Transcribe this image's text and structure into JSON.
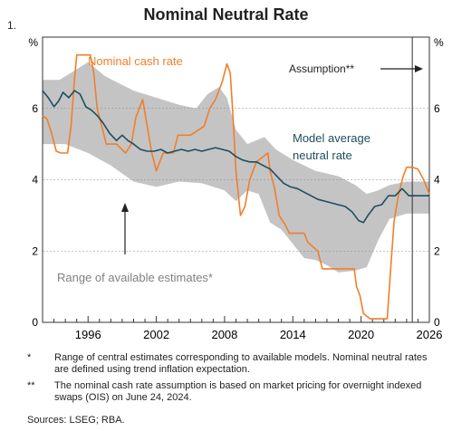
{
  "figure_number": "1.",
  "chart_data": {
    "type": "line",
    "title": "Nominal Neutral Rate",
    "ylabel_left": "%",
    "ylabel_right": "%",
    "ylim": [
      0,
      8
    ],
    "yticks": [
      0,
      2,
      4,
      6
    ],
    "xlim": [
      1992,
      2026
    ],
    "xticks": [
      1996,
      2002,
      2008,
      2014,
      2020,
      2026
    ],
    "assumption_start": 2024.5,
    "annotations": {
      "cash": "Nominal cash rate",
      "model": [
        "Model average",
        "neutral rate"
      ],
      "range": "Range of available estimates*",
      "assumption": "Assumption**"
    },
    "series": [
      {
        "name": "Nominal cash rate",
        "color": "#f07f2a",
        "points": [
          [
            1992.0,
            5.8
          ],
          [
            1992.4,
            5.7
          ],
          [
            1992.8,
            5.3
          ],
          [
            1993.2,
            4.8
          ],
          [
            1993.6,
            4.75
          ],
          [
            1994.2,
            4.75
          ],
          [
            1994.5,
            5.5
          ],
          [
            1994.8,
            6.8
          ],
          [
            1995.0,
            7.5
          ],
          [
            1996.2,
            7.5
          ],
          [
            1996.5,
            7.0
          ],
          [
            1996.8,
            6.0
          ],
          [
            1997.2,
            5.5
          ],
          [
            1997.6,
            5.0
          ],
          [
            1998.5,
            5.0
          ],
          [
            1999.3,
            4.75
          ],
          [
            1999.8,
            5.0
          ],
          [
            2000.2,
            5.75
          ],
          [
            2000.8,
            6.25
          ],
          [
            2001.2,
            5.5
          ],
          [
            2001.6,
            4.75
          ],
          [
            2002.0,
            4.25
          ],
          [
            2002.3,
            4.5
          ],
          [
            2002.6,
            4.75
          ],
          [
            2003.5,
            4.75
          ],
          [
            2003.9,
            5.25
          ],
          [
            2005.0,
            5.25
          ],
          [
            2006.2,
            5.5
          ],
          [
            2006.7,
            6.0
          ],
          [
            2007.2,
            6.25
          ],
          [
            2007.8,
            6.75
          ],
          [
            2008.2,
            7.25
          ],
          [
            2008.5,
            7.0
          ],
          [
            2008.7,
            6.0
          ],
          [
            2009.0,
            4.25
          ],
          [
            2009.4,
            3.0
          ],
          [
            2009.8,
            3.25
          ],
          [
            2010.2,
            4.0
          ],
          [
            2010.8,
            4.5
          ],
          [
            2011.8,
            4.75
          ],
          [
            2012.0,
            4.25
          ],
          [
            2012.4,
            3.75
          ],
          [
            2012.8,
            3.0
          ],
          [
            2013.3,
            2.75
          ],
          [
            2013.7,
            2.5
          ],
          [
            2015.0,
            2.5
          ],
          [
            2015.3,
            2.25
          ],
          [
            2016.2,
            2.0
          ],
          [
            2016.6,
            1.5
          ],
          [
            2019.4,
            1.5
          ],
          [
            2019.6,
            1.0
          ],
          [
            2019.9,
            0.75
          ],
          [
            2020.2,
            0.25
          ],
          [
            2020.8,
            0.1
          ],
          [
            2022.3,
            0.1
          ],
          [
            2022.6,
            1.5
          ],
          [
            2022.9,
            2.85
          ],
          [
            2023.3,
            3.6
          ],
          [
            2023.7,
            4.1
          ],
          [
            2024.0,
            4.35
          ],
          [
            2024.5,
            4.35
          ],
          [
            2025.0,
            4.3
          ],
          [
            2025.5,
            4.0
          ],
          [
            2026.0,
            3.6
          ]
        ]
      },
      {
        "name": "Model average neutral rate",
        "color": "#1e4e5e",
        "points": [
          [
            1992.0,
            6.5
          ],
          [
            1992.5,
            6.3
          ],
          [
            1993.0,
            6.05
          ],
          [
            1993.4,
            6.2
          ],
          [
            1993.8,
            6.45
          ],
          [
            1994.3,
            6.3
          ],
          [
            1994.8,
            6.5
          ],
          [
            1995.3,
            6.4
          ],
          [
            1995.8,
            6.05
          ],
          [
            1996.3,
            5.95
          ],
          [
            1996.8,
            5.8
          ],
          [
            1997.3,
            5.6
          ],
          [
            1997.9,
            5.3
          ],
          [
            1998.5,
            5.1
          ],
          [
            1999.0,
            5.25
          ],
          [
            1999.5,
            5.1
          ],
          [
            2000.0,
            5.0
          ],
          [
            2000.6,
            4.85
          ],
          [
            2001.2,
            4.8
          ],
          [
            2001.8,
            4.8
          ],
          [
            2002.4,
            4.85
          ],
          [
            2003.0,
            4.75
          ],
          [
            2003.6,
            4.8
          ],
          [
            2004.2,
            4.85
          ],
          [
            2004.8,
            4.8
          ],
          [
            2005.4,
            4.85
          ],
          [
            2006.0,
            4.8
          ],
          [
            2006.6,
            4.85
          ],
          [
            2007.2,
            4.9
          ],
          [
            2007.8,
            4.85
          ],
          [
            2008.4,
            4.8
          ],
          [
            2009.0,
            4.65
          ],
          [
            2009.6,
            4.55
          ],
          [
            2010.2,
            4.5
          ],
          [
            2010.8,
            4.5
          ],
          [
            2011.4,
            4.4
          ],
          [
            2012.0,
            4.3
          ],
          [
            2012.6,
            4.1
          ],
          [
            2013.2,
            3.9
          ],
          [
            2013.8,
            3.8
          ],
          [
            2014.4,
            3.75
          ],
          [
            2015.0,
            3.65
          ],
          [
            2015.6,
            3.55
          ],
          [
            2016.2,
            3.45
          ],
          [
            2016.8,
            3.4
          ],
          [
            2017.4,
            3.35
          ],
          [
            2018.0,
            3.3
          ],
          [
            2018.6,
            3.25
          ],
          [
            2019.2,
            3.1
          ],
          [
            2019.8,
            2.85
          ],
          [
            2020.2,
            2.8
          ],
          [
            2020.6,
            3.0
          ],
          [
            2021.2,
            3.25
          ],
          [
            2021.8,
            3.3
          ],
          [
            2022.4,
            3.55
          ],
          [
            2023.0,
            3.55
          ],
          [
            2023.6,
            3.75
          ],
          [
            2024.2,
            3.55
          ],
          [
            2025.0,
            3.55
          ],
          [
            2026.0,
            3.55
          ]
        ]
      }
    ],
    "range_band": {
      "name": "Range of available estimates",
      "color": "#c4c4c4",
      "upper": [
        [
          1992.0,
          6.8
        ],
        [
          1993.5,
          6.8
        ],
        [
          1994.5,
          7.0
        ],
        [
          1996.0,
          7.3
        ],
        [
          1997.5,
          6.9
        ],
        [
          2000.0,
          6.5
        ],
        [
          2002.0,
          6.3
        ],
        [
          2004.0,
          6.1
        ],
        [
          2005.5,
          6.0
        ],
        [
          2006.5,
          6.4
        ],
        [
          2007.5,
          6.6
        ],
        [
          2008.2,
          6.3
        ],
        [
          2009.0,
          5.4
        ],
        [
          2010.0,
          5.0
        ],
        [
          2011.5,
          5.2
        ],
        [
          2012.5,
          4.85
        ],
        [
          2014.0,
          4.55
        ],
        [
          2016.0,
          4.25
        ],
        [
          2018.0,
          4.1
        ],
        [
          2019.5,
          3.85
        ],
        [
          2020.5,
          3.6
        ],
        [
          2021.5,
          3.7
        ],
        [
          2022.5,
          3.85
        ],
        [
          2024.0,
          3.95
        ],
        [
          2026.0,
          3.95
        ]
      ],
      "lower": [
        [
          2026.0,
          3.05
        ],
        [
          2024.0,
          3.05
        ],
        [
          2022.5,
          2.9
        ],
        [
          2021.5,
          2.3
        ],
        [
          2020.5,
          1.55
        ],
        [
          2019.5,
          1.45
        ],
        [
          2018.0,
          1.4
        ],
        [
          2017.0,
          1.6
        ],
        [
          2016.0,
          1.75
        ],
        [
          2015.0,
          1.8
        ],
        [
          2014.0,
          2.2
        ],
        [
          2013.0,
          2.6
        ],
        [
          2012.0,
          2.8
        ],
        [
          2011.0,
          3.6
        ],
        [
          2010.0,
          3.7
        ],
        [
          2009.0,
          3.4
        ],
        [
          2008.0,
          3.7
        ],
        [
          2006.0,
          3.9
        ],
        [
          2004.0,
          3.95
        ],
        [
          2002.0,
          3.8
        ],
        [
          2000.0,
          3.95
        ],
        [
          1998.0,
          4.4
        ],
        [
          1996.0,
          4.75
        ],
        [
          1994.0,
          5.0
        ],
        [
          1992.0,
          5.0
        ]
      ]
    }
  },
  "notes": [
    {
      "mark": "*",
      "text": "Range of central estimates corresponding to available models. Nominal neutral rates are defined using trend inflation expectation."
    },
    {
      "mark": "**",
      "text": "The nominal cash rate assumption is based on market pricing for overnight indexed swaps (OIS) on June 24, 2024."
    }
  ],
  "sources": "Sources: LSEG; RBA."
}
